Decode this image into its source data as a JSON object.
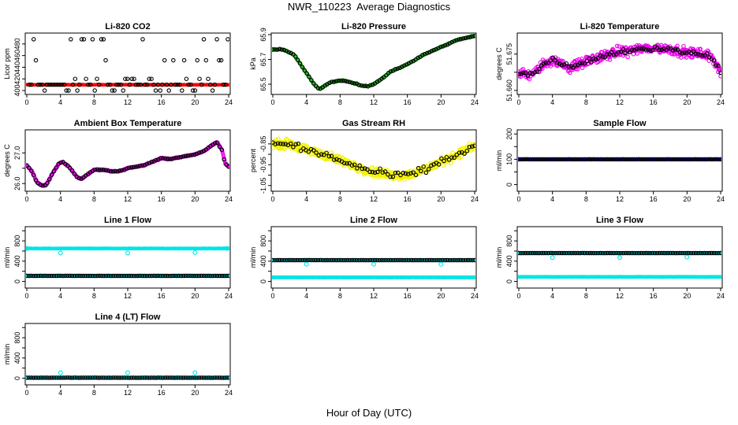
{
  "page": {
    "title": "NWR_110223  Average Diagnostics",
    "xlabel": "Hour of Day (UTC)"
  },
  "colors": {
    "black": "#000000",
    "red": "#ff0000",
    "green": "#22bb22",
    "magenta": "#ee00ee",
    "yellow": "#f2f200",
    "blue": "#0000cc",
    "cyan": "#00e5e5"
  },
  "chart_data": [
    {
      "type": "scatter",
      "title": "Li-820 CO2",
      "ylabel": "Licor ppm",
      "xlim": [
        0,
        24
      ],
      "ylim": [
        396,
        496
      ],
      "xticks": [
        0,
        4,
        8,
        12,
        16,
        20,
        24
      ],
      "yticks": [
        400,
        420,
        440,
        460,
        480
      ],
      "series": [
        {
          "name": "all",
          "color": "red",
          "gen": "flat",
          "args": [
            410,
            0.6
          ],
          "n": 420,
          "size": 1.6
        },
        {
          "name": "avg",
          "color": "black",
          "gen": "co2",
          "args": [],
          "size": 2.2
        }
      ]
    },
    {
      "type": "scatter",
      "title": "Li-820 Pressure",
      "ylabel": "kPa",
      "xlim": [
        0,
        24
      ],
      "ylim": [
        65.43,
        65.9
      ],
      "xticks": [
        0,
        4,
        8,
        12,
        16,
        20,
        24
      ],
      "yticks": [
        65.5,
        65.7,
        65.9
      ],
      "keys": [
        [
          0,
          65.78
        ],
        [
          1.2,
          65.78
        ],
        [
          2.5,
          65.74
        ],
        [
          3.5,
          65.64
        ],
        [
          5.0,
          65.49
        ],
        [
          5.6,
          65.46
        ],
        [
          6.2,
          65.49
        ],
        [
          7.0,
          65.52
        ],
        [
          8.3,
          65.53
        ],
        [
          9.5,
          65.51
        ],
        [
          10.5,
          65.49
        ],
        [
          11.3,
          65.48
        ],
        [
          12.5,
          65.52
        ],
        [
          14,
          65.6
        ],
        [
          16,
          65.66
        ],
        [
          18,
          65.74
        ],
        [
          20,
          65.8
        ],
        [
          22,
          65.86
        ],
        [
          24,
          65.89
        ]
      ],
      "series": [
        {
          "name": "all",
          "color": "green",
          "gen": "curve",
          "args": [
            0.006
          ],
          "n": 400,
          "size": 1.8
        },
        {
          "name": "avg",
          "color": "black",
          "gen": "curve",
          "args": [
            0.006
          ],
          "n": 90,
          "size": 2.2
        }
      ]
    },
    {
      "type": "scatter",
      "title": "Li-820 Temperature",
      "ylabel": "degrees C",
      "xlim": [
        0,
        24
      ],
      "ylim": [
        51.659,
        51.683
      ],
      "xticks": [
        0,
        4,
        8,
        12,
        16,
        20,
        24
      ],
      "yticks": [
        51.66,
        51.675
      ],
      "yticklabels": [
        "51.660",
        "51.675"
      ],
      "extraYticks": [
        51.6675
      ],
      "keys": [
        [
          0,
          51.667
        ],
        [
          1,
          51.6665
        ],
        [
          2,
          51.6675
        ],
        [
          3,
          51.671
        ],
        [
          4,
          51.6725
        ],
        [
          5,
          51.671
        ],
        [
          6,
          51.6695
        ],
        [
          7,
          51.6705
        ],
        [
          8,
          51.672
        ],
        [
          9,
          51.673
        ],
        [
          10,
          51.674
        ],
        [
          12,
          51.676
        ],
        [
          14,
          51.677
        ],
        [
          16,
          51.6775
        ],
        [
          18,
          51.677
        ],
        [
          20,
          51.6755
        ],
        [
          22,
          51.675
        ],
        [
          23,
          51.6735
        ],
        [
          24,
          51.668
        ]
      ],
      "series": [
        {
          "name": "all",
          "color": "magenta",
          "gen": "curve",
          "args": [
            0.003
          ],
          "n": 420,
          "size": 2.2
        },
        {
          "name": "avg",
          "color": "black",
          "gen": "curve",
          "args": [
            0.0015
          ],
          "n": 90,
          "size": 2.2
        }
      ]
    },
    {
      "type": "scatter",
      "title": "Ambient Box Temperature",
      "ylabel": "degrees C",
      "xlim": [
        0,
        24
      ],
      "ylim": [
        25.8,
        27.7
      ],
      "xticks": [
        0,
        4,
        8,
        12,
        16,
        20,
        24
      ],
      "yticks": [
        26.0,
        27.0
      ],
      "yticklabels": [
        "26.0",
        "27.0"
      ],
      "extraYticks": [
        26.5
      ],
      "keys": [
        [
          0,
          26.6
        ],
        [
          0.6,
          26.4
        ],
        [
          1.2,
          26.05
        ],
        [
          1.8,
          25.93
        ],
        [
          2.3,
          25.95
        ],
        [
          3.0,
          26.3
        ],
        [
          3.8,
          26.65
        ],
        [
          4.3,
          26.7
        ],
        [
          5.0,
          26.55
        ],
        [
          6.0,
          26.2
        ],
        [
          6.5,
          26.15
        ],
        [
          7.0,
          26.25
        ],
        [
          8.0,
          26.45
        ],
        [
          9.0,
          26.45
        ],
        [
          10.0,
          26.4
        ],
        [
          11.0,
          26.4
        ],
        [
          12.0,
          26.5
        ],
        [
          13.0,
          26.55
        ],
        [
          14.0,
          26.6
        ],
        [
          15.0,
          26.72
        ],
        [
          16.0,
          26.82
        ],
        [
          17.0,
          26.8
        ],
        [
          18.0,
          26.85
        ],
        [
          19.0,
          26.9
        ],
        [
          20.0,
          26.95
        ],
        [
          21.0,
          27.05
        ],
        [
          22.0,
          27.25
        ],
        [
          22.6,
          27.35
        ],
        [
          23.2,
          27.1
        ],
        [
          23.6,
          26.65
        ],
        [
          24,
          26.55
        ]
      ],
      "series": [
        {
          "name": "all",
          "color": "magenta",
          "gen": "curve",
          "args": [
            0.025
          ],
          "n": 420,
          "size": 2.0
        },
        {
          "name": "avg",
          "color": "black",
          "gen": "curve",
          "args": [
            0.02
          ],
          "n": 90,
          "size": 2.2
        }
      ]
    },
    {
      "type": "scatter",
      "title": "Gas Stream RH",
      "ylabel": "percent",
      "xlim": [
        0,
        24
      ],
      "ylim": [
        -1.07,
        -0.79
      ],
      "xticks": [
        0,
        4,
        8,
        12,
        16,
        20,
        24
      ],
      "yticks": [
        -1.05,
        -0.95,
        -0.85
      ],
      "yticklabels": [
        "-1.05",
        "-0.95",
        "-0.85"
      ],
      "extraYticks": [
        -1.0,
        -0.9
      ],
      "keys": [
        [
          0,
          -0.85
        ],
        [
          2,
          -0.85
        ],
        [
          4,
          -0.88
        ],
        [
          6,
          -0.9
        ],
        [
          8,
          -0.93
        ],
        [
          10,
          -0.96
        ],
        [
          12,
          -0.985
        ],
        [
          14,
          -1.0
        ],
        [
          16,
          -1.0
        ],
        [
          18,
          -0.975
        ],
        [
          20,
          -0.935
        ],
        [
          22,
          -0.9
        ],
        [
          24,
          -0.86
        ]
      ],
      "series": [
        {
          "name": "all",
          "color": "yellow",
          "gen": "curve",
          "args": [
            0.03
          ],
          "n": 460,
          "size": 2.4
        },
        {
          "name": "avg",
          "color": "black",
          "gen": "curve",
          "args": [
            0.025
          ],
          "n": 80,
          "size": 2.2
        }
      ]
    },
    {
      "type": "scatter",
      "title": "Sample Flow",
      "ylabel": "ml/min",
      "xlim": [
        0,
        24
      ],
      "ylim": [
        -20,
        210
      ],
      "xticks": [
        0,
        4,
        8,
        12,
        16,
        20,
        24
      ],
      "yticks": [
        0,
        100,
        200
      ],
      "extraYticks": [
        50,
        150
      ],
      "series": [
        {
          "name": "all",
          "color": "blue",
          "gen": "flat",
          "args": [
            100,
            0.5
          ],
          "n": 400,
          "size": 1.8
        },
        {
          "name": "avg",
          "color": "black",
          "gen": "flat",
          "args": [
            100,
            0.3
          ],
          "n": 90,
          "size": 2.2
        }
      ]
    },
    {
      "type": "scatter",
      "title": "Line 1 Flow",
      "ylabel": "ml/min",
      "xlim": [
        0,
        24
      ],
      "ylim": [
        -100,
        1050
      ],
      "xticks": [
        0,
        4,
        8,
        12,
        16,
        20,
        24
      ],
      "yticks": [
        0,
        400,
        800
      ],
      "extraYticks": [
        200,
        600,
        1000
      ],
      "series": [
        {
          "name": "line",
          "color": "cyan",
          "gen": "flat",
          "args": [
            650,
            4
          ],
          "n": 420,
          "size": 1.8
        },
        {
          "name": "low",
          "color": "cyan",
          "gen": "flat",
          "args": [
            110,
            3
          ],
          "n": 420,
          "size": 1.8
        },
        {
          "name": "avg",
          "color": "black",
          "gen": "flat",
          "args": [
            110,
            2
          ],
          "n": 90,
          "size": 2.2
        },
        {
          "name": "outliers",
          "color": "cyan",
          "gen": "points",
          "args": [
            [
              0,
              650
            ],
            [
              4,
              560
            ],
            [
              12,
              560
            ],
            [
              20,
              570
            ],
            [
              23.8,
              650
            ]
          ],
          "size": 2.4
        }
      ]
    },
    {
      "type": "scatter",
      "title": "Line 2 Flow",
      "ylabel": "ml/min",
      "xlim": [
        0,
        24
      ],
      "ylim": [
        -100,
        1050
      ],
      "xticks": [
        0,
        4,
        8,
        12,
        16,
        20,
        24
      ],
      "yticks": [
        0,
        400,
        800
      ],
      "extraYticks": [
        200,
        600,
        1000
      ],
      "series": [
        {
          "name": "line",
          "color": "cyan",
          "gen": "flat",
          "args": [
            420,
            4
          ],
          "n": 420,
          "size": 1.8
        },
        {
          "name": "low",
          "color": "cyan",
          "gen": "flat",
          "args": [
            80,
            3
          ],
          "n": 420,
          "size": 1.8
        },
        {
          "name": "avg",
          "color": "black",
          "gen": "flat",
          "args": [
            420,
            2
          ],
          "n": 90,
          "size": 2.2
        },
        {
          "name": "outliers",
          "color": "cyan",
          "gen": "points",
          "args": [
            [
              4,
              340
            ],
            [
              12,
              340
            ],
            [
              20,
              340
            ]
          ],
          "size": 2.4
        }
      ]
    },
    {
      "type": "scatter",
      "title": "Line 3 Flow",
      "ylabel": "ml/min",
      "xlim": [
        0,
        24
      ],
      "ylim": [
        -100,
        1050
      ],
      "xticks": [
        0,
        4,
        8,
        12,
        16,
        20,
        24
      ],
      "yticks": [
        0,
        400,
        800
      ],
      "extraYticks": [
        200,
        600,
        1000
      ],
      "series": [
        {
          "name": "line",
          "color": "cyan",
          "gen": "flat",
          "args": [
            560,
            4
          ],
          "n": 420,
          "size": 1.8
        },
        {
          "name": "low",
          "color": "cyan",
          "gen": "flat",
          "args": [
            90,
            3
          ],
          "n": 420,
          "size": 1.8
        },
        {
          "name": "avg",
          "color": "black",
          "gen": "flat",
          "args": [
            560,
            2
          ],
          "n": 90,
          "size": 2.2
        },
        {
          "name": "outliers",
          "color": "cyan",
          "gen": "points",
          "args": [
            [
              4,
              470
            ],
            [
              12,
              470
            ],
            [
              20,
              480
            ]
          ],
          "size": 2.4
        }
      ]
    },
    {
      "type": "scatter",
      "title": "Line 4 (LT) Flow",
      "ylabel": "ml/min",
      "xlim": [
        0,
        24
      ],
      "ylim": [
        -100,
        1050
      ],
      "xticks": [
        0,
        4,
        8,
        12,
        16,
        20,
        24
      ],
      "yticks": [
        0,
        400,
        800
      ],
      "extraYticks": [
        200,
        600,
        1000
      ],
      "series": [
        {
          "name": "low",
          "color": "cyan",
          "gen": "flat",
          "args": [
            10,
            3
          ],
          "n": 420,
          "size": 1.8
        },
        {
          "name": "avg",
          "color": "black",
          "gen": "flat",
          "args": [
            10,
            2
          ],
          "n": 90,
          "size": 2.2
        },
        {
          "name": "outliers",
          "color": "cyan",
          "gen": "points",
          "args": [
            [
              4,
              110
            ],
            [
              12,
              110
            ],
            [
              20,
              110
            ]
          ],
          "size": 2.4
        }
      ]
    }
  ]
}
